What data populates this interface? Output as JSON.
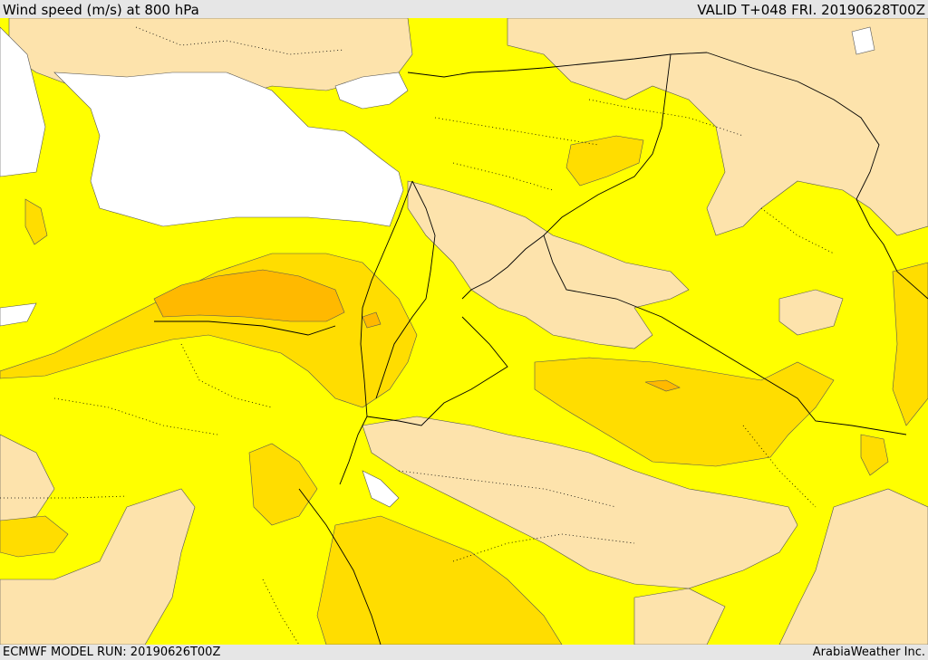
{
  "header": {
    "title": "Wind speed (m/s) at 800 hPa",
    "valid": "VALID T+048 FRI. 20190628T00Z"
  },
  "footer": {
    "model_run": "ECMWF MODEL RUN: 20190626T00Z",
    "credit": "ArabiaWeather Inc."
  },
  "colors": {
    "sea": "#ffffff",
    "calm": "#fde3ac",
    "light": "#ffff00",
    "moderate": "#ffdd00",
    "strong": "#ffb900",
    "boundary": "#000000",
    "header_bg": "#e6e6e6"
  },
  "icons": [
    "country-border-line",
    "contour-line"
  ]
}
